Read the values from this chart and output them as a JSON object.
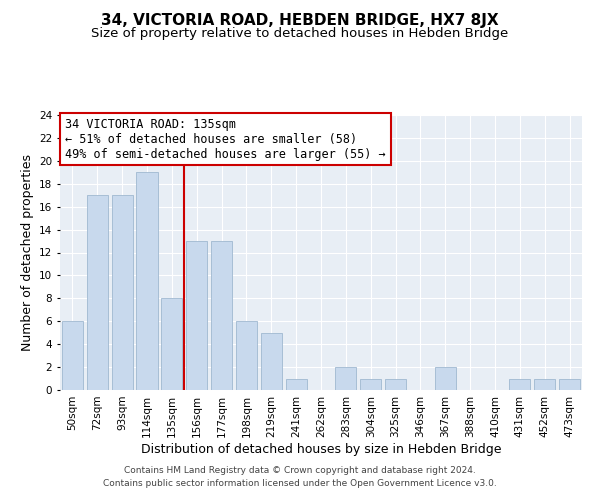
{
  "title": "34, VICTORIA ROAD, HEBDEN BRIDGE, HX7 8JX",
  "subtitle": "Size of property relative to detached houses in Hebden Bridge",
  "xlabel": "Distribution of detached houses by size in Hebden Bridge",
  "ylabel": "Number of detached properties",
  "bar_labels": [
    "50sqm",
    "72sqm",
    "93sqm",
    "114sqm",
    "135sqm",
    "156sqm",
    "177sqm",
    "198sqm",
    "219sqm",
    "241sqm",
    "262sqm",
    "283sqm",
    "304sqm",
    "325sqm",
    "346sqm",
    "367sqm",
    "388sqm",
    "410sqm",
    "431sqm",
    "452sqm",
    "473sqm"
  ],
  "bar_values": [
    6,
    17,
    17,
    19,
    8,
    13,
    13,
    6,
    5,
    1,
    0,
    2,
    1,
    1,
    0,
    2,
    0,
    0,
    1,
    1,
    1
  ],
  "bar_color": "#c8d9ed",
  "bar_edge_color": "#a0b8d0",
  "red_line_index": 4,
  "ylim": [
    0,
    24
  ],
  "yticks": [
    0,
    2,
    4,
    6,
    8,
    10,
    12,
    14,
    16,
    18,
    20,
    22,
    24
  ],
  "annotation_title": "34 VICTORIA ROAD: 135sqm",
  "annotation_line1": "← 51% of detached houses are smaller (58)",
  "annotation_line2": "49% of semi-detached houses are larger (55) →",
  "annotation_box_color": "#ffffff",
  "annotation_border_color": "#cc0000",
  "footer1": "Contains HM Land Registry data © Crown copyright and database right 2024.",
  "footer2": "Contains public sector information licensed under the Open Government Licence v3.0.",
  "title_fontsize": 11,
  "subtitle_fontsize": 9.5,
  "axis_label_fontsize": 9,
  "tick_fontsize": 7.5,
  "footer_fontsize": 6.5,
  "annotation_fontsize": 8.5,
  "bg_color": "#e8eef5"
}
